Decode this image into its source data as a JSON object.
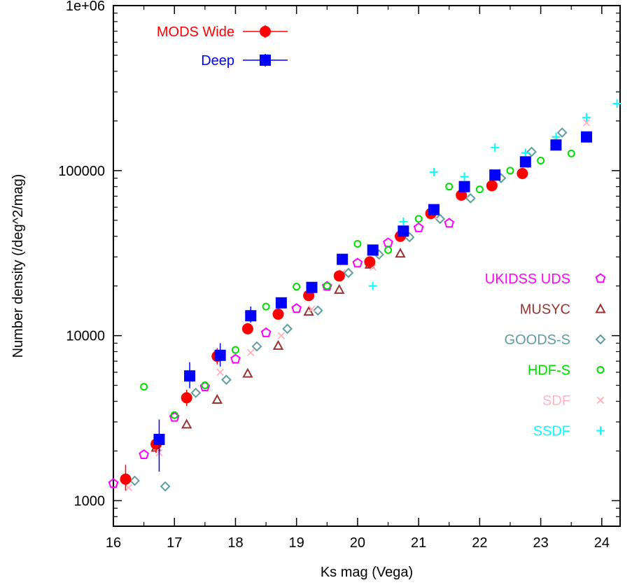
{
  "chart_data": {
    "type": "scatter",
    "xlabel": "Ks mag  (Vega)",
    "ylabel": "Number density  (/deg^2/mag)",
    "xlim": [
      16,
      24.3
    ],
    "ylim": [
      700,
      1000000
    ],
    "yscale": "log",
    "x_ticks": [
      16,
      17,
      18,
      19,
      20,
      21,
      22,
      23,
      24
    ],
    "x_tick_labels": [
      "16",
      "17",
      "18",
      "19",
      "20",
      "21",
      "22",
      "23",
      "24"
    ],
    "y_ticks": [
      1000,
      10000,
      100000,
      1000000
    ],
    "y_tick_labels": [
      "1000",
      "10000",
      "100000",
      "1e+06"
    ],
    "grid": false,
    "legend_placement": [
      "top-left",
      "right"
    ],
    "series": [
      {
        "name": "MODS Wide",
        "marker": "filled-circle",
        "color": "#ff0000",
        "errorbars": true,
        "legend_group": "top-left",
        "x": [
          16.2,
          16.7,
          17.2,
          17.7,
          18.2,
          18.7,
          19.2,
          19.7,
          20.2,
          20.7,
          21.2,
          21.7,
          22.2,
          22.7
        ],
        "y": [
          1350,
          2200,
          4200,
          7500,
          11000,
          13500,
          17500,
          23000,
          28000,
          40000,
          55000,
          71000,
          81000,
          96000
        ],
        "y_err": [
          [
            1150,
            1650
          ],
          [
            1950,
            2500
          ],
          [
            3750,
            4700
          ],
          [
            6700,
            8400
          ],
          [
            10200,
            11800
          ],
          [
            12800,
            14200
          ],
          [
            16800,
            18200
          ],
          [
            22000,
            24000
          ],
          [
            27000,
            29000
          ],
          [
            39000,
            41000
          ],
          [
            54000,
            56000
          ],
          [
            70000,
            72000
          ],
          [
            80000,
            82000
          ],
          [
            95000,
            97000
          ]
        ]
      },
      {
        "name": "Deep",
        "marker": "filled-square",
        "color": "#0000ff",
        "errorbars": true,
        "legend_group": "top-left",
        "x": [
          16.75,
          17.25,
          17.75,
          18.25,
          18.75,
          19.25,
          19.75,
          20.25,
          20.75,
          21.25,
          21.75,
          22.25,
          22.75,
          23.25,
          23.75
        ],
        "y": [
          2350,
          5700,
          7600,
          13200,
          15800,
          19600,
          29000,
          33000,
          43000,
          58000,
          80000,
          94000,
          113000,
          143000,
          160000
        ],
        "y_err": [
          [
            1500,
            3100
          ],
          [
            4800,
            6900
          ],
          [
            6500,
            9000
          ],
          [
            12000,
            15000
          ],
          [
            14700,
            17000
          ],
          [
            18800,
            20500
          ],
          [
            28000,
            30000
          ],
          [
            32000,
            34000
          ],
          [
            42000,
            44000
          ],
          [
            57000,
            59000
          ],
          [
            79000,
            81000
          ],
          [
            93000,
            95000
          ],
          [
            112000,
            114000
          ],
          [
            142000,
            144000
          ],
          [
            159000,
            161000
          ]
        ]
      },
      {
        "name": "UKIDSS UDS",
        "marker": "open-pentagon",
        "color": "#ff00ff",
        "legend_group": "right",
        "x": [
          16.0,
          16.5,
          17.0,
          17.5,
          18.0,
          18.5,
          19.0,
          19.5,
          20.0,
          20.5,
          21.0,
          21.5
        ],
        "y": [
          1270,
          1900,
          3200,
          4900,
          7200,
          10400,
          14600,
          19900,
          27500,
          36500,
          45000,
          48000
        ]
      },
      {
        "name": "MUSYC",
        "marker": "open-triangle",
        "color": "#993333",
        "legend_group": "right",
        "x": [
          16.7,
          17.2,
          17.7,
          18.2,
          18.7,
          19.2,
          19.7,
          20.2,
          20.7
        ],
        "y": [
          2100,
          2900,
          4100,
          5900,
          8700,
          14000,
          19000,
          27000,
          31500
        ]
      },
      {
        "name": "GOODS-S",
        "marker": "open-diamond",
        "color": "#5f9ea0",
        "legend_group": "right",
        "x": [
          16.35,
          16.85,
          17.35,
          17.85,
          18.35,
          18.85,
          19.35,
          19.85,
          20.35,
          20.85,
          21.35,
          21.85,
          22.35,
          22.85,
          23.35
        ],
        "y": [
          1320,
          1220,
          4500,
          5400,
          8600,
          11000,
          14200,
          24000,
          31000,
          39500,
          51000,
          68000,
          90000,
          130000,
          170000
        ]
      },
      {
        "name": "HDF-S",
        "marker": "open-circle",
        "color": "#00dd00",
        "legend_group": "right",
        "x": [
          16.5,
          17.0,
          17.5,
          18.0,
          18.5,
          19.0,
          19.5,
          20.0,
          20.5,
          21.0,
          21.5,
          22.0,
          22.5,
          23.0,
          23.5
        ],
        "y": [
          4900,
          3300,
          5000,
          8200,
          15000,
          19800,
          20000,
          36000,
          33000,
          51000,
          80000,
          77000,
          100000,
          115000,
          127000
        ]
      },
      {
        "name": "SDF",
        "marker": "cross",
        "color": "#ffb6c1",
        "legend_group": "right",
        "x": [
          16.25,
          16.75,
          17.25,
          17.75,
          18.25,
          18.75,
          19.25,
          19.75,
          20.25,
          20.75,
          21.25,
          21.75,
          22.25,
          22.75,
          23.25,
          23.75
        ],
        "y": [
          1200,
          1950,
          5500,
          6000,
          7900,
          10000,
          14500,
          24000,
          26000,
          41000,
          53000,
          72000,
          86000,
          108000,
          153000,
          195000
        ]
      },
      {
        "name": "SSDF",
        "marker": "plus",
        "color": "#00ffff",
        "legend_group": "right",
        "x": [
          20.25,
          20.75,
          21.25,
          21.75,
          22.25,
          22.75,
          23.25,
          23.75,
          24.25
        ],
        "y": [
          20000,
          49000,
          98000,
          92000,
          138000,
          128000,
          160000,
          210000,
          255000
        ]
      }
    ]
  }
}
